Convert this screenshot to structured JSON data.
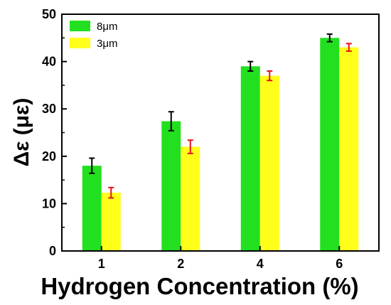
{
  "chart_data": {
    "type": "bar",
    "categories": [
      "1",
      "2",
      "4",
      "6"
    ],
    "xlabel": "Hydrogen Concentration (%)",
    "ylabel": "Δε (με)",
    "ylim": [
      0,
      50
    ],
    "yticks": [
      "0",
      "10",
      "20",
      "30",
      "40",
      "50"
    ],
    "grid": false,
    "legend_position": "top-left",
    "series": [
      {
        "name": "8μm",
        "color": "#22e01f",
        "error_color": "#000000",
        "values": [
          18.0,
          27.4,
          39.0,
          45.0
        ],
        "errors": [
          1.6,
          2.0,
          1.0,
          0.8
        ]
      },
      {
        "name": "3μm",
        "color": "#ffff1a",
        "error_color": "#e8101a",
        "values": [
          12.3,
          22.0,
          37.0,
          43.0
        ],
        "errors": [
          1.1,
          1.4,
          1.0,
          0.8
        ]
      }
    ]
  }
}
